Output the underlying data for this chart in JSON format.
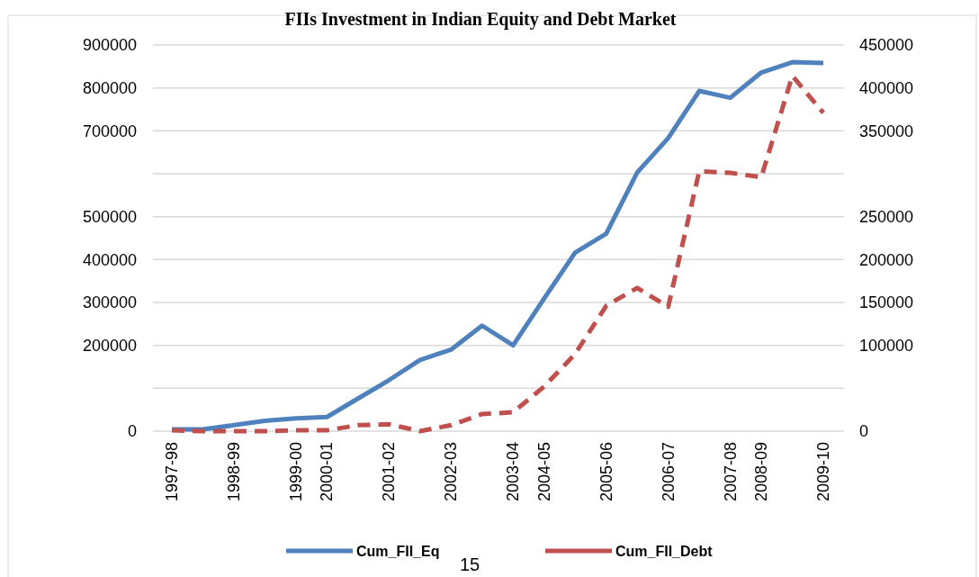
{
  "chart_data": {
    "type": "line",
    "title": "FIIs Investment in Indian Equity and Debt Market",
    "categories": [
      "1997-98",
      null,
      "1998-99",
      null,
      "1999-00",
      "2000-01",
      null,
      "2001-02",
      null,
      "2002-03",
      null,
      "2003-04",
      "2004-05",
      null,
      "2005-06",
      null,
      "2006-07",
      null,
      "2007-08",
      "2008-09",
      null,
      "2009-10"
    ],
    "series": [
      {
        "name": "Cum_FII_Eq",
        "color": "#4f81bd",
        "line_style": "solid",
        "values": [
          4000,
          4000,
          14000,
          24000,
          30000,
          33000,
          76000,
          119000,
          166000,
          190000,
          246000,
          200000,
          309000,
          416000,
          460000,
          603000,
          683000,
          793000,
          777000,
          836000,
          860000,
          858000
        ]
      },
      {
        "name": "Cum_FII_Debt",
        "color": "#c0504d",
        "line_style": "dashed",
        "axis": "y2",
        "values": [
          1000,
          0,
          0,
          0,
          1000,
          1000,
          7000,
          8000,
          0,
          7000,
          20000,
          22000,
          52000,
          90000,
          146000,
          167000,
          145000,
          303000,
          301000,
          296000,
          414000,
          371000
        ]
      }
    ],
    "ylim": [
      0,
      900000
    ],
    "yticks": [
      0,
      {
        "value": 100000,
        "label": null
      },
      200000,
      300000,
      400000,
      500000,
      {
        "value": 600000,
        "label": null
      },
      700000,
      800000,
      900000
    ],
    "y2lim": [
      0,
      450000
    ],
    "y2ticks": [
      0,
      {
        "value": 50000,
        "label": null
      },
      100000,
      150000,
      200000,
      250000,
      {
        "value": 300000,
        "label": null
      },
      350000,
      400000,
      450000
    ],
    "grid": "y",
    "legend": "bottom",
    "annotations": [
      "15"
    ]
  }
}
